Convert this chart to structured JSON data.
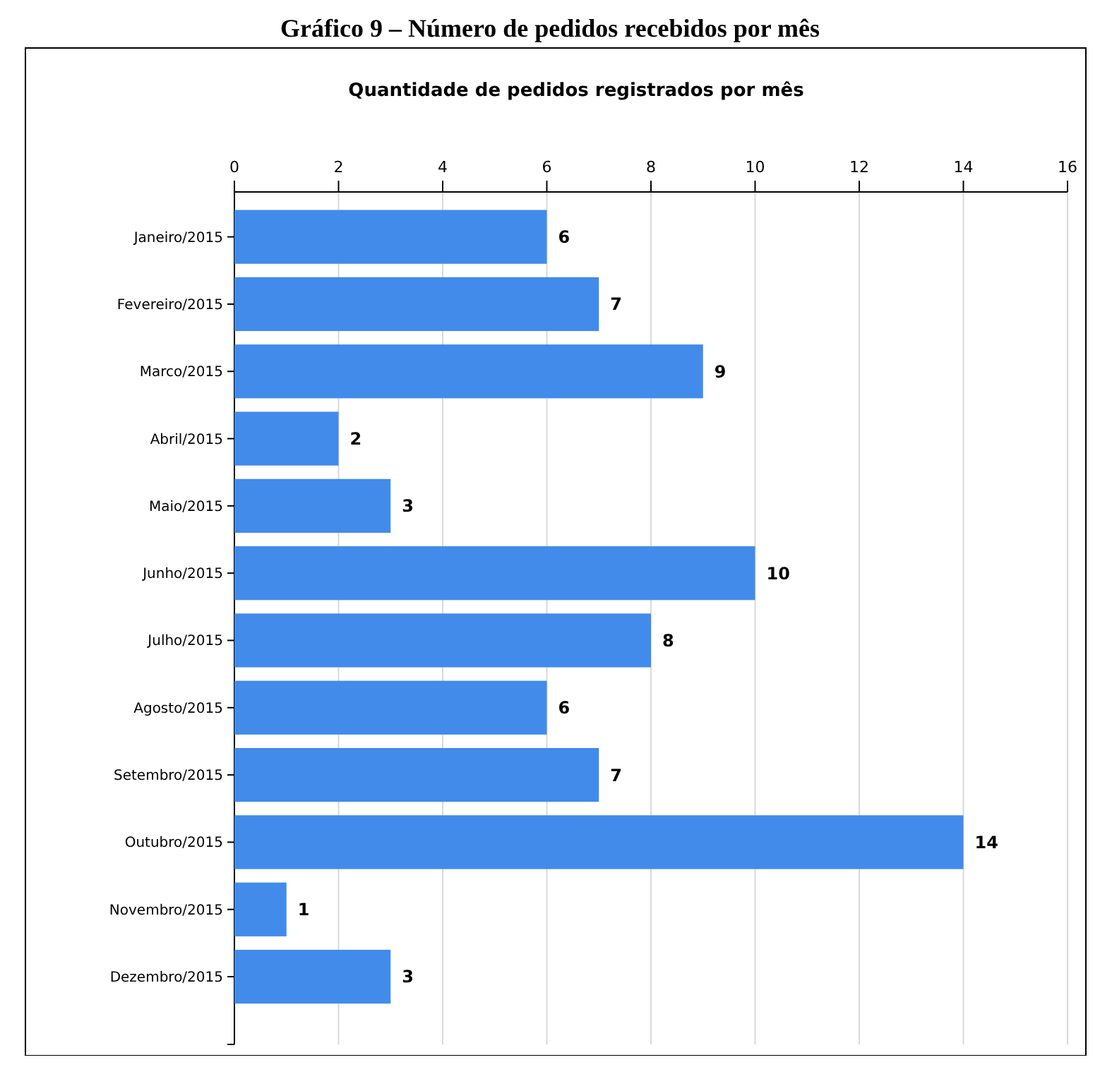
{
  "chart_data": {
    "type": "bar",
    "orientation": "horizontal",
    "title": "Gráfico 9 – Número de pedidos recebidos por mês",
    "subtitle": "Quantidade de pedidos registrados por mês",
    "categories": [
      "Janeiro/2015",
      "Fevereiro/2015",
      "Marco/2015",
      "Abril/2015",
      "Maio/2015",
      "Junho/2015",
      "Julho/2015",
      "Agosto/2015",
      "Setembro/2015",
      "Outubro/2015",
      "Novembro/2015",
      "Dezembro/2015"
    ],
    "values": [
      6,
      7,
      9,
      2,
      3,
      10,
      8,
      6,
      7,
      14,
      1,
      3
    ],
    "color": "#428bea",
    "xlim": [
      0,
      16
    ],
    "xticks": [
      0,
      2,
      4,
      6,
      8,
      10,
      12,
      14,
      16
    ],
    "grid": "x",
    "data_labels": true
  }
}
